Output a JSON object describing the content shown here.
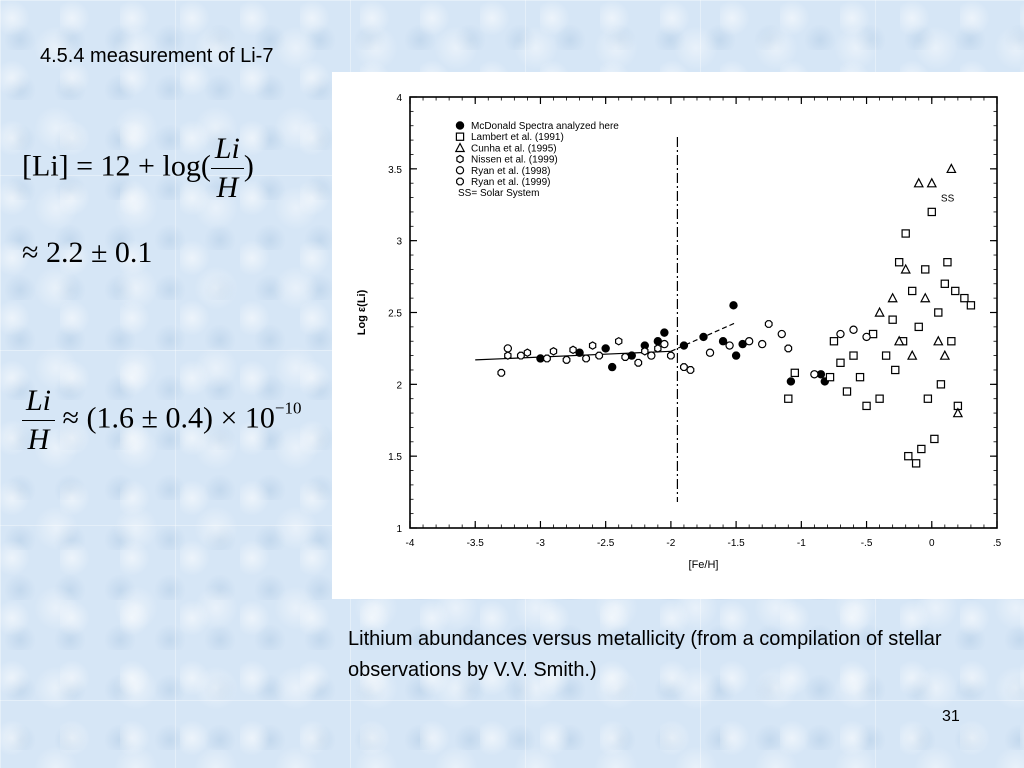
{
  "slide": {
    "title": "4.5.4 measurement of Li-7",
    "caption": "Lithium abundances versus metallicity  (from a compilation of stellar observations by V.V. Smith.)",
    "page_number": "31"
  },
  "equations": {
    "eq1": {
      "lhs": "[Li] = 12 + log(",
      "frac_num": "Li",
      "frac_den": "H",
      "tail": ")"
    },
    "eq2": "≈ 2.2 ± 0.1",
    "eq3": {
      "frac_num": "Li",
      "frac_den": "H",
      "rhs": " ≈ (1.6 ± 0.4) × 10",
      "exponent": "−10"
    }
  },
  "chart_data": {
    "type": "scatter",
    "xlabel": "[Fe/H]",
    "ylabel": "Log ε(Li)",
    "xlim": [
      -4,
      0.5
    ],
    "ylim": [
      1,
      4
    ],
    "xticks": [
      -4,
      -3.5,
      -3,
      -2.5,
      -2,
      -1.5,
      -1,
      -0.5,
      0,
      0.5
    ],
    "xtick_labels": [
      "-4",
      "-3.5",
      "-3",
      "-2.5",
      "-2",
      "-1.5",
      "-1",
      "-.5",
      "0",
      ".5"
    ],
    "yticks": [
      1,
      1.5,
      2,
      2.5,
      3,
      3.5,
      4
    ],
    "ytick_labels": [
      "1",
      "1.5",
      "2",
      "2.5",
      "3",
      "3.5",
      "4"
    ],
    "legend_position": "top-left",
    "legend_note": "SS= Solar System",
    "annotations": [
      {
        "text": "SS",
        "x": 0.07,
        "y": 3.3
      }
    ],
    "vertical_line_x": -1.95,
    "trend_line": [
      [
        -3.5,
        2.17
      ],
      [
        -2.0,
        2.23
      ],
      [
        -1.5,
        2.43
      ]
    ],
    "series": [
      {
        "name": "McDonald Spectra analyzed here",
        "marker": "filled-circle",
        "points": [
          [
            -3.0,
            2.18
          ],
          [
            -2.7,
            2.22
          ],
          [
            -2.5,
            2.25
          ],
          [
            -2.45,
            2.12
          ],
          [
            -2.3,
            2.2
          ],
          [
            -2.2,
            2.27
          ],
          [
            -2.1,
            2.3
          ],
          [
            -2.05,
            2.36
          ],
          [
            -1.9,
            2.27
          ],
          [
            -1.75,
            2.33
          ],
          [
            -1.6,
            2.3
          ],
          [
            -1.52,
            2.55
          ],
          [
            -1.5,
            2.2
          ],
          [
            -1.45,
            2.28
          ],
          [
            -1.08,
            2.02
          ],
          [
            -0.85,
            2.07
          ],
          [
            -0.82,
            2.02
          ]
        ]
      },
      {
        "name": "Lambert et al. (1991)",
        "marker": "open-square",
        "points": [
          [
            -1.1,
            1.9
          ],
          [
            -1.05,
            2.08
          ],
          [
            -0.78,
            2.05
          ],
          [
            -0.75,
            2.3
          ],
          [
            -0.7,
            2.15
          ],
          [
            -0.65,
            1.95
          ],
          [
            -0.6,
            2.2
          ],
          [
            -0.55,
            2.05
          ],
          [
            -0.5,
            1.85
          ],
          [
            -0.45,
            2.35
          ],
          [
            -0.4,
            1.9
          ],
          [
            -0.35,
            2.2
          ],
          [
            -0.3,
            2.45
          ],
          [
            -0.28,
            2.1
          ],
          [
            -0.25,
            2.85
          ],
          [
            -0.22,
            2.3
          ],
          [
            -0.2,
            3.05
          ],
          [
            -0.18,
            1.5
          ],
          [
            -0.15,
            2.65
          ],
          [
            -0.12,
            1.45
          ],
          [
            -0.1,
            2.4
          ],
          [
            -0.08,
            1.55
          ],
          [
            -0.05,
            2.8
          ],
          [
            -0.03,
            1.9
          ],
          [
            0.0,
            3.2
          ],
          [
            0.02,
            1.62
          ],
          [
            0.05,
            2.5
          ],
          [
            0.07,
            2.0
          ],
          [
            0.1,
            2.7
          ],
          [
            0.12,
            2.85
          ],
          [
            0.15,
            2.3
          ],
          [
            0.18,
            2.65
          ],
          [
            0.2,
            1.85
          ],
          [
            0.25,
            2.6
          ],
          [
            0.3,
            2.55
          ]
        ]
      },
      {
        "name": "Cunha et al. (1995)",
        "marker": "open-triangle",
        "points": [
          [
            -0.4,
            2.5
          ],
          [
            -0.3,
            2.6
          ],
          [
            -0.25,
            2.3
          ],
          [
            -0.2,
            2.8
          ],
          [
            -0.15,
            2.2
          ],
          [
            -0.1,
            3.4
          ],
          [
            -0.05,
            2.6
          ],
          [
            0.0,
            3.4
          ],
          [
            0.05,
            2.3
          ],
          [
            0.1,
            2.2
          ],
          [
            0.15,
            3.5
          ],
          [
            0.2,
            1.8
          ]
        ]
      },
      {
        "name": "Nissen et al. (1999)",
        "marker": "open-hexagon",
        "points": [
          [
            -3.25,
            2.2
          ],
          [
            -3.1,
            2.22
          ],
          [
            -2.9,
            2.23
          ],
          [
            -2.75,
            2.24
          ],
          [
            -2.6,
            2.27
          ],
          [
            -2.4,
            2.3
          ],
          [
            -2.2,
            2.23
          ],
          [
            -2.1,
            2.25
          ]
        ]
      },
      {
        "name": "Ryan et al. (1998)",
        "marker": "open-circle",
        "points": [
          [
            -3.25,
            2.25
          ],
          [
            -2.15,
            2.2
          ],
          [
            -2.05,
            2.28
          ],
          [
            -1.7,
            2.22
          ],
          [
            -1.55,
            2.27
          ],
          [
            -1.4,
            2.3
          ],
          [
            -1.3,
            2.28
          ],
          [
            -1.15,
            2.35
          ],
          [
            -0.9,
            2.07
          ],
          [
            -0.7,
            2.35
          ],
          [
            -0.6,
            2.38
          ],
          [
            -0.5,
            2.33
          ]
        ]
      },
      {
        "name": "Ryan et al. (1999)",
        "marker": "open-diamond",
        "points": [
          [
            -3.3,
            2.08
          ],
          [
            -3.15,
            2.2
          ],
          [
            -2.95,
            2.18
          ],
          [
            -2.8,
            2.17
          ],
          [
            -2.65,
            2.18
          ],
          [
            -2.55,
            2.2
          ],
          [
            -2.35,
            2.19
          ],
          [
            -2.25,
            2.15
          ],
          [
            -2.0,
            2.2
          ],
          [
            -1.9,
            2.12
          ],
          [
            -1.85,
            2.1
          ],
          [
            -1.25,
            2.42
          ],
          [
            -1.1,
            2.25
          ]
        ]
      }
    ]
  }
}
